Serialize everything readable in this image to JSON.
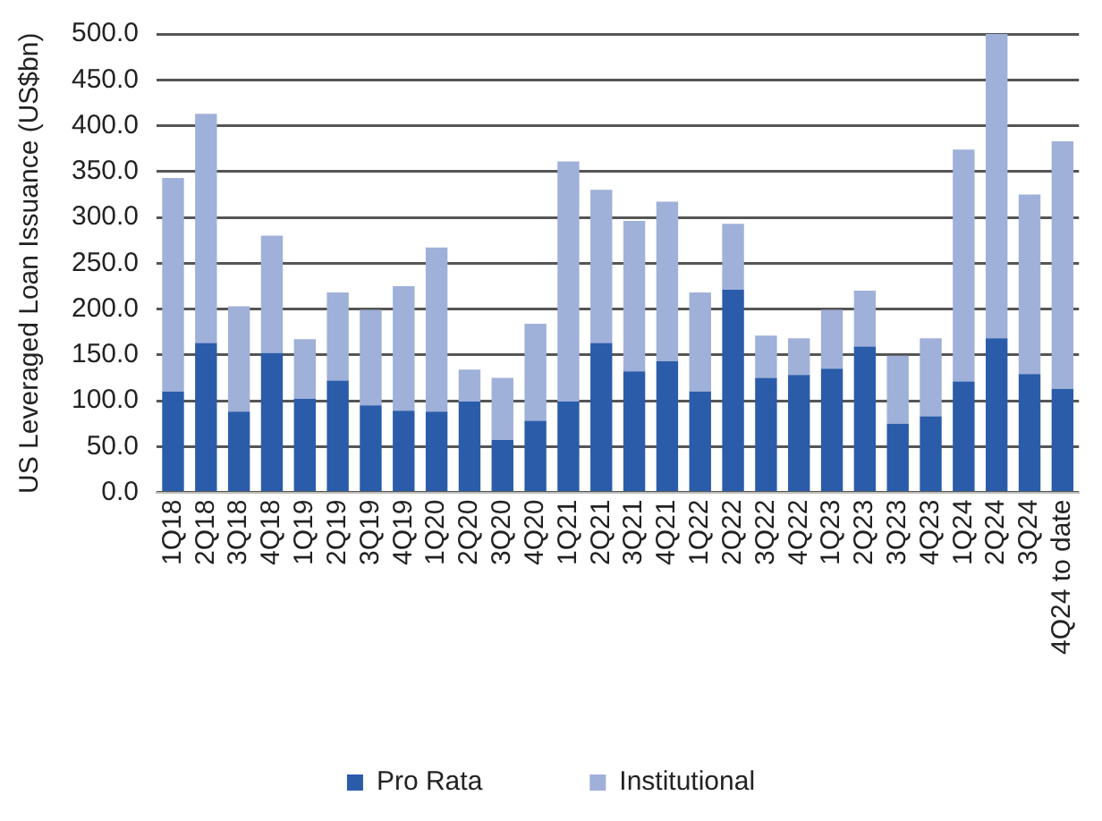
{
  "chart_data": {
    "type": "bar",
    "stacked": true,
    "ylabel": "US Leveraged Loan Issuance (US$bn)",
    "categories": [
      "1Q18",
      "2Q18",
      "3Q18",
      "4Q18",
      "1Q19",
      "2Q19",
      "3Q19",
      "4Q19",
      "1Q20",
      "2Q20",
      "3Q20",
      "4Q20",
      "1Q21",
      "2Q21",
      "3Q21",
      "4Q21",
      "1Q22",
      "2Q22",
      "3Q22",
      "4Q22",
      "1Q23",
      "2Q23",
      "3Q23",
      "4Q23",
      "1Q24",
      "2Q24",
      "3Q24",
      "4Q24 to date"
    ],
    "series": [
      {
        "name": "Pro Rata",
        "color": "#2a5caa",
        "values": [
          110,
          163,
          88,
          152,
          102,
          122,
          95,
          89,
          88,
          99,
          57,
          78,
          99,
          163,
          132,
          143,
          110,
          221,
          125,
          128,
          135,
          159,
          75,
          83,
          121,
          168,
          129,
          113
        ]
      },
      {
        "name": "Institutional",
        "color": "#9fb0d9",
        "values": [
          233,
          250,
          115,
          128,
          65,
          96,
          104,
          136,
          179,
          35,
          68,
          106,
          262,
          167,
          164,
          174,
          108,
          72,
          46,
          40,
          64,
          61,
          74,
          85,
          253,
          332,
          196,
          270
        ]
      }
    ],
    "ylim": [
      0,
      500
    ],
    "yticks": [
      {
        "value": 0,
        "label": "0.0"
      },
      {
        "value": 50,
        "label": "50.0"
      },
      {
        "value": 100,
        "label": "100.0"
      },
      {
        "value": 150,
        "label": "150.0"
      },
      {
        "value": 200,
        "label": "200.0"
      },
      {
        "value": 250,
        "label": "250.0"
      },
      {
        "value": 300,
        "label": "300.0"
      },
      {
        "value": 350,
        "label": "350.0"
      },
      {
        "value": 400,
        "label": "400.0"
      },
      {
        "value": 450,
        "label": "450.0"
      },
      {
        "value": 500,
        "label": "500.0"
      }
    ],
    "grid": "y",
    "legend": "bottom"
  }
}
